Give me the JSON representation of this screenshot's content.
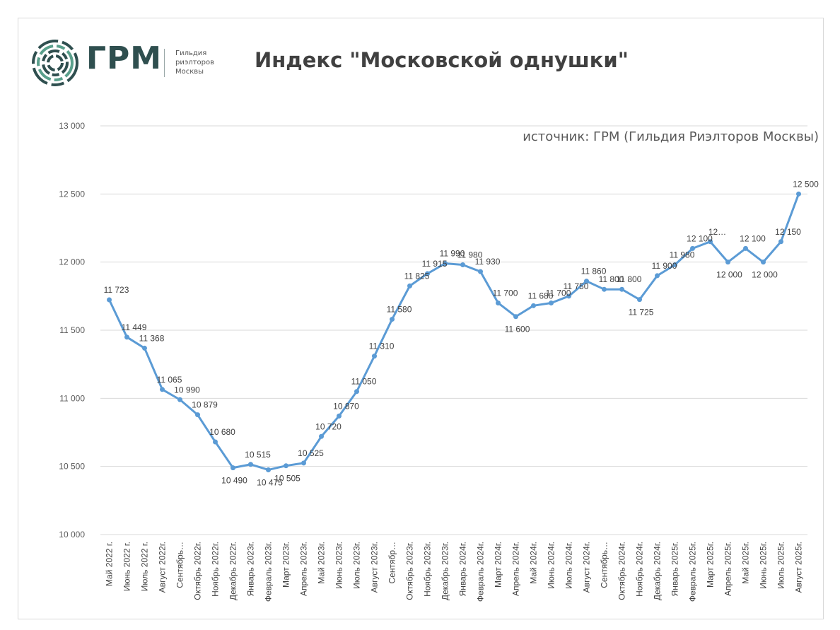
{
  "header": {
    "logo_text": "ГРМ",
    "logo_sub": [
      "Гильдия",
      "риэлторов",
      "Москвы"
    ],
    "title": "Индекс \"Московской однушки\"",
    "source": "источник: ГРМ (Гильдия Риэлторов Москвы)"
  },
  "colors": {
    "line": "#5b9bd5",
    "grid": "#d9d9d9",
    "logo": "#2f4f4f",
    "logo_accent": "#5aa08c"
  },
  "chart_data": {
    "type": "line",
    "title": "Индекс \"Московской однушки\"",
    "xlabel": "",
    "ylabel": "",
    "ylim": [
      10000,
      13000
    ],
    "yticks": [
      10000,
      10500,
      11000,
      11500,
      12000,
      12500,
      13000
    ],
    "ytick_labels": [
      "10 000",
      "10 500",
      "11 000",
      "11 500",
      "12 000",
      "12 500",
      "13 000"
    ],
    "grid": true,
    "legend": "none",
    "categories": [
      "Май 2022 г.",
      "Июнь 2022 г.",
      "Июль 2022 г.",
      "Август 2022г.",
      "Сентябрь…",
      "Октябрь 2022г.",
      "Ноябрь 2022г.",
      "Декабрь 2022г.",
      "Январь 2023г.",
      "Февраль 2023г.",
      "Март 2023г.",
      "Апрель 2023г.",
      "Май 2023г.",
      "Июнь 2023г.",
      "Июль 2023г.",
      "Август 2023г.",
      "Сентябр…",
      "Октябрь 2023г.",
      "Ноябрь 2023г.",
      "Декабрь 2023г.",
      "Январь 2024г.",
      "Февраль 2024г.",
      "Март 2024г.",
      "Апрель 2024г.",
      "Май 2024г.",
      "Июнь 2024г.",
      "Июль 2024г.",
      "Август 2024г.",
      "Сентябрь…",
      "Октябрь 2024г.",
      "Ноябрь 2024г.",
      "Декабрь 2024г.",
      "Январь 2025г.",
      "Февраль 2025г.",
      "Март 2025г.",
      "Апрель 2025г.",
      "Май 2025г.",
      "Июнь 2025г.",
      "Июль 2025г.",
      "Август 2025г."
    ],
    "series": [
      {
        "values": [
          11723,
          11449,
          11368,
          11065,
          10990,
          10879,
          10680,
          10490,
          10515,
          10475,
          10505,
          10525,
          10720,
          10870,
          11050,
          11310,
          11580,
          11825,
          11915,
          11990,
          11980,
          11930,
          11700,
          11600,
          11680,
          11700,
          11750,
          11860,
          11800,
          11800,
          11725,
          11900,
          11980,
          12100,
          12150,
          12000,
          12100,
          12000,
          12150,
          12500
        ],
        "labels": [
          "11 723",
          "11 449",
          "11 368",
          "11 065",
          "10 990",
          "10 879",
          "10 680",
          "10 490",
          "10 515",
          "10 475",
          "10 505",
          "10 525",
          "10 720",
          "10 870",
          "11 050",
          "11 310",
          "11 580",
          "11 825",
          "11 915",
          "11 990",
          "11 980",
          "11 930",
          "11 700",
          "11 600",
          "11 680",
          "11 700",
          "11 750",
          "11 860",
          "11 800",
          "11 800",
          "11 725",
          "11 900",
          "11 980",
          "12 100",
          "12…",
          "12 000",
          "12 100",
          "12 000",
          "12 150",
          "12 500"
        ]
      }
    ]
  }
}
